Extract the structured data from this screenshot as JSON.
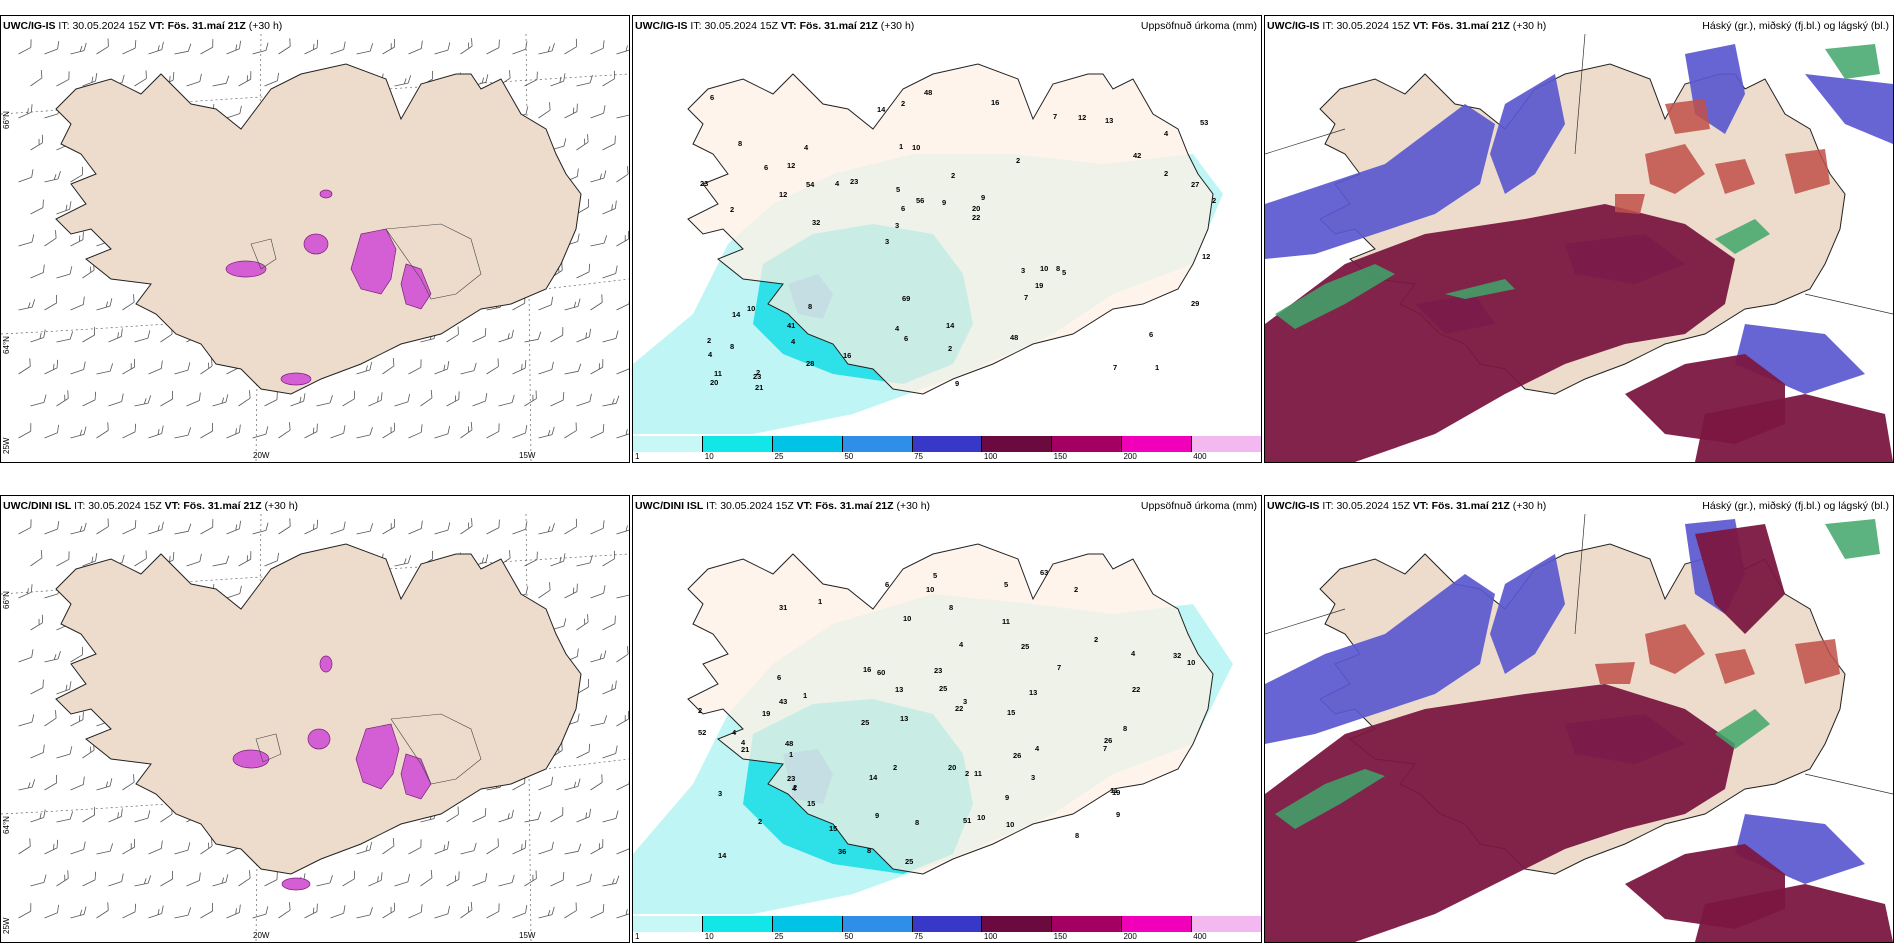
{
  "rows": [
    {
      "model": "UWC/IG-IS",
      "it_label": "IT:",
      "it_value": "30.05.2024 15Z",
      "vt_label": "VT:",
      "vt_value": "Fös. 31.maí 21Z",
      "lead": "(+30 h)"
    },
    {
      "model": "UWC/DINI ISL",
      "it_label": "IT:",
      "it_value": "30.05.2024 15Z",
      "vt_label": "VT:",
      "vt_value": "Fös. 31.maí 21Z",
      "lead": "(+30 h)"
    }
  ],
  "precip_title": "Uppsöfnuð úrkoma (mm)",
  "cloud_title": "Háský (gr.), miðský (fj.bl.) og lágský (bl.)",
  "axis_labels": {
    "lon20": "20W",
    "lon15": "15W",
    "lon25": "25W",
    "lat66": "66°N",
    "lat64": "64°N"
  },
  "colorbar": {
    "labels": [
      "1",
      "10",
      "25",
      "50",
      "75",
      "100",
      "150",
      "200",
      "400"
    ],
    "colors": [
      "#c7f7f7",
      "#12e6e6",
      "#00c3e6",
      "#2f8fe8",
      "#3838c8",
      "#6b0a3e",
      "#a30061",
      "#f000b8",
      "#f4b8f0"
    ]
  },
  "precip_numbers_top": [
    "1",
    "2",
    "4",
    "3",
    "2",
    "2",
    "1",
    "2",
    "10",
    "23",
    "4",
    "4",
    "10",
    "9",
    "5",
    "8",
    "2",
    "2",
    "3",
    "2",
    "3",
    "4",
    "6",
    "4",
    "7",
    "8",
    "7",
    "6",
    "8",
    "9",
    "4",
    "12",
    "7",
    "28",
    "27",
    "20",
    "11",
    "6",
    "22",
    "14",
    "42",
    "53",
    "19",
    "48",
    "41",
    "21",
    "20",
    "14",
    "13",
    "48",
    "32",
    "23",
    "12",
    "12",
    "23",
    "16",
    "14",
    "56",
    "29",
    "69",
    "16",
    "10",
    "54",
    "2",
    "6",
    "6",
    "12",
    "5",
    "2",
    "9",
    "8"
  ],
  "precip_numbers_bottom": [
    "2",
    "2",
    "1",
    "2",
    "2",
    "1",
    "1",
    "2",
    "4",
    "7",
    "4",
    "5",
    "3",
    "22",
    "25",
    "6",
    "9",
    "2",
    "4",
    "8",
    "10",
    "10",
    "10",
    "3",
    "25",
    "9",
    "4",
    "5",
    "4",
    "4",
    "6",
    "15",
    "10",
    "20",
    "19",
    "21",
    "32",
    "15",
    "25",
    "26",
    "10",
    "8",
    "8",
    "48",
    "52",
    "43",
    "26",
    "51",
    "14",
    "9",
    "60",
    "36",
    "23",
    "22",
    "25",
    "11",
    "16",
    "11",
    "31",
    "19",
    "14",
    "63",
    "11",
    "13",
    "2",
    "3",
    "23",
    "13",
    "8",
    "8",
    "7",
    "15",
    "13"
  ]
}
